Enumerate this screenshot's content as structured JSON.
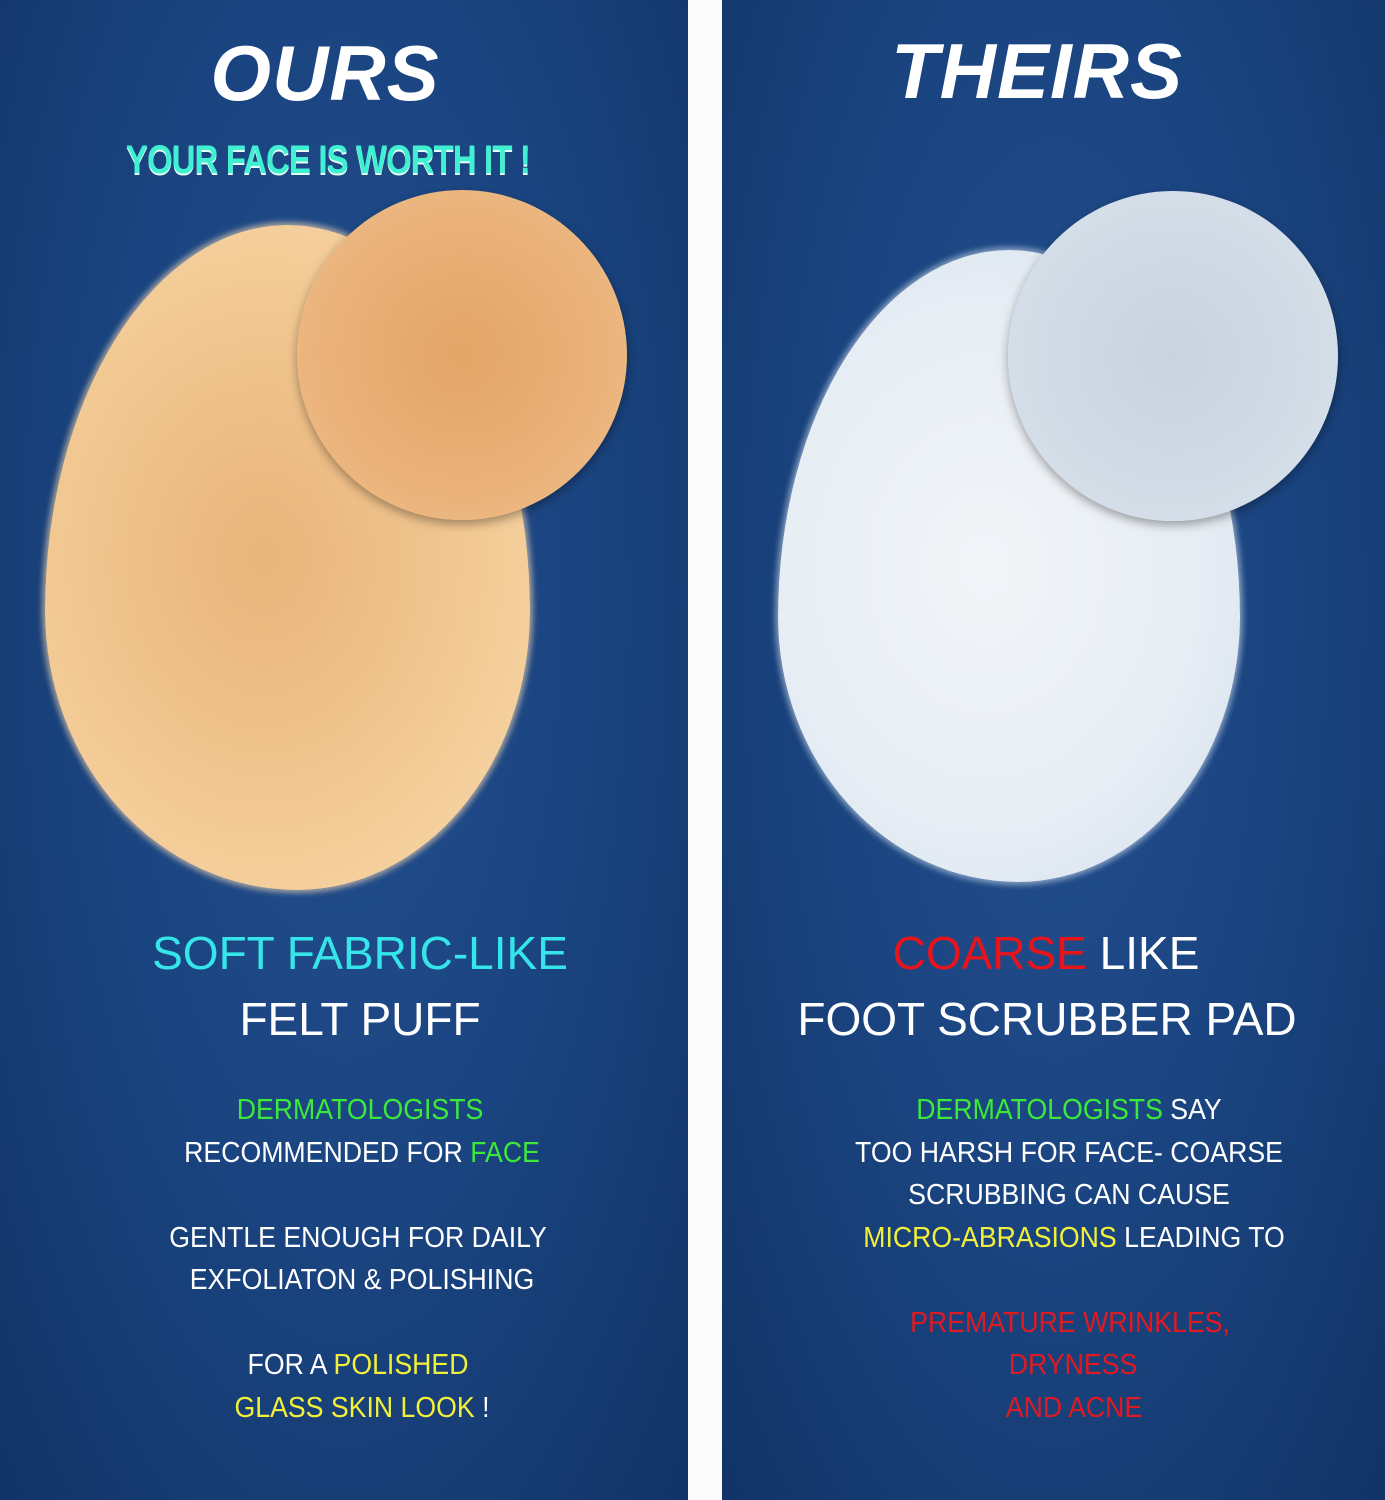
{
  "ours": {
    "title": "OURS",
    "tagline": "YOUR FACE IS WORTH IT !",
    "headline_1": "SOFT FABRIC-LIKE",
    "headline_2": "FELT PUFF",
    "line_1": "DERMATOLOGISTS",
    "line_2a": "RECOMMENDED FOR ",
    "line_2b": "FACE",
    "line_3": "GENTLE ENOUGH FOR DAILY",
    "line_4": "EXFOLIATON & POLISHING",
    "line_5a": "FOR A ",
    "line_5b": "POLISHED",
    "line_6a": "GLASS SKIN  LOOK",
    "line_6b": " !",
    "product_color": "#f0c48e"
  },
  "theirs": {
    "title": "THEIRS",
    "headline_1a": "COARSE",
    "headline_1b": " LIKE",
    "headline_2": "FOOT SCRUBBER PAD",
    "line_1a": "DERMATOLOGISTS",
    "line_1b": " SAY",
    "line_2": "TOO HARSH FOR FACE- COARSE",
    "line_3": "SCRUBBING CAN CAUSE",
    "line_4a": "MICRO-ABRASIONS",
    "line_4b": " LEADING TO",
    "line_5": "PREMATURE WRINKLES,",
    "line_6": "DRYNESS",
    "line_7": "AND ACNE",
    "product_color": "#dfe9f2"
  },
  "colors": {
    "background": "#1a4480",
    "cyan": "#35e5ea",
    "green": "#3ce83a",
    "yellow": "#f3f03a",
    "red": "#e8141c"
  }
}
